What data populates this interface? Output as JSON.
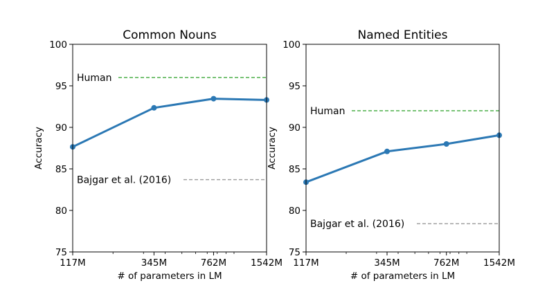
{
  "chart_data": [
    {
      "type": "line",
      "title": "Common Nouns",
      "xlabel": "# of parameters in LM",
      "ylabel": "Accuracy",
      "x_scale": "log",
      "x_ticks": [
        117,
        345,
        762,
        1542
      ],
      "x_tick_labels": [
        "117M",
        "345M",
        "762M",
        "1542M"
      ],
      "xlim": [
        117,
        1542
      ],
      "ylim": [
        75,
        100
      ],
      "y_ticks": [
        75,
        80,
        85,
        90,
        95,
        100
      ],
      "y_tick_labels": [
        "75",
        "80",
        "85",
        "90",
        "95",
        "100"
      ],
      "series": [
        {
          "x": [
            117,
            345,
            762,
            1542
          ],
          "y": [
            87.65,
            92.35,
            93.45,
            93.3
          ]
        }
      ],
      "reference_lines": [
        {
          "label": "Human",
          "y": 96.0,
          "color": "#4daf4a"
        },
        {
          "label": "Bajgar et al. (2016)",
          "y": 83.7,
          "color": "#999999"
        }
      ],
      "grid": false
    },
    {
      "type": "line",
      "title": "Named Entities",
      "xlabel": "# of parameters in LM",
      "ylabel": "Accuracy",
      "x_scale": "log",
      "x_ticks": [
        117,
        345,
        762,
        1542
      ],
      "x_tick_labels": [
        "117M",
        "345M",
        "762M",
        "1542M"
      ],
      "xlim": [
        117,
        1542
      ],
      "ylim": [
        75,
        100
      ],
      "y_ticks": [
        75,
        80,
        85,
        90,
        95,
        100
      ],
      "y_tick_labels": [
        "75",
        "80",
        "85",
        "90",
        "95",
        "100"
      ],
      "series": [
        {
          "x": [
            117,
            345,
            762,
            1542
          ],
          "y": [
            83.4,
            87.1,
            88.0,
            89.05
          ]
        }
      ],
      "reference_lines": [
        {
          "label": "Human",
          "y": 92.0,
          "color": "#4daf4a"
        },
        {
          "label": "Bajgar et al. (2016)",
          "y": 78.4,
          "color": "#999999"
        }
      ],
      "grid": false
    }
  ],
  "colors": {
    "series": "#2b78b4",
    "human": "#4daf4a",
    "baseline": "#999999"
  }
}
